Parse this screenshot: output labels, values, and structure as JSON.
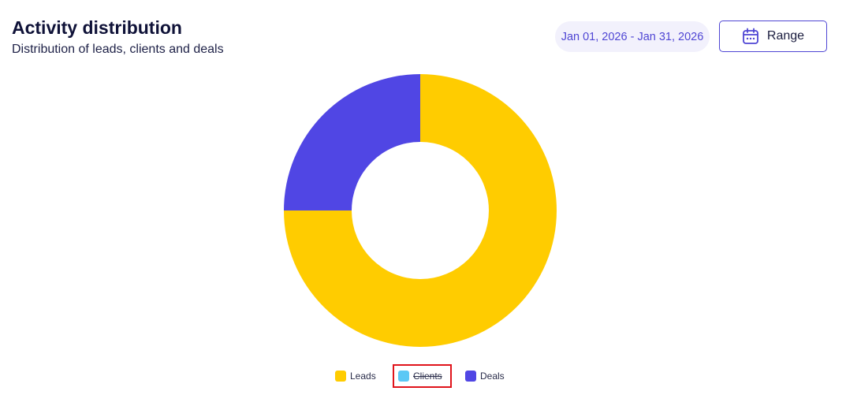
{
  "header": {
    "title": "Activity distribution",
    "subtitle": "Distribution of leads, clients and deals"
  },
  "controls": {
    "date_range": "Jan 01, 2026 - Jan 31, 2026",
    "range_label": "Range",
    "accent_color": "#4F46D4"
  },
  "chart_data": {
    "type": "pie",
    "variant": "doughnut",
    "title": "",
    "categories": [
      "Leads",
      "Clients",
      "Deals"
    ],
    "values": [
      75,
      0,
      25
    ],
    "colors": [
      "#FFCC00",
      "#5BC8F5",
      "#5046E4"
    ],
    "hidden": [
      false,
      true,
      false
    ],
    "legend_position": "bottom"
  }
}
